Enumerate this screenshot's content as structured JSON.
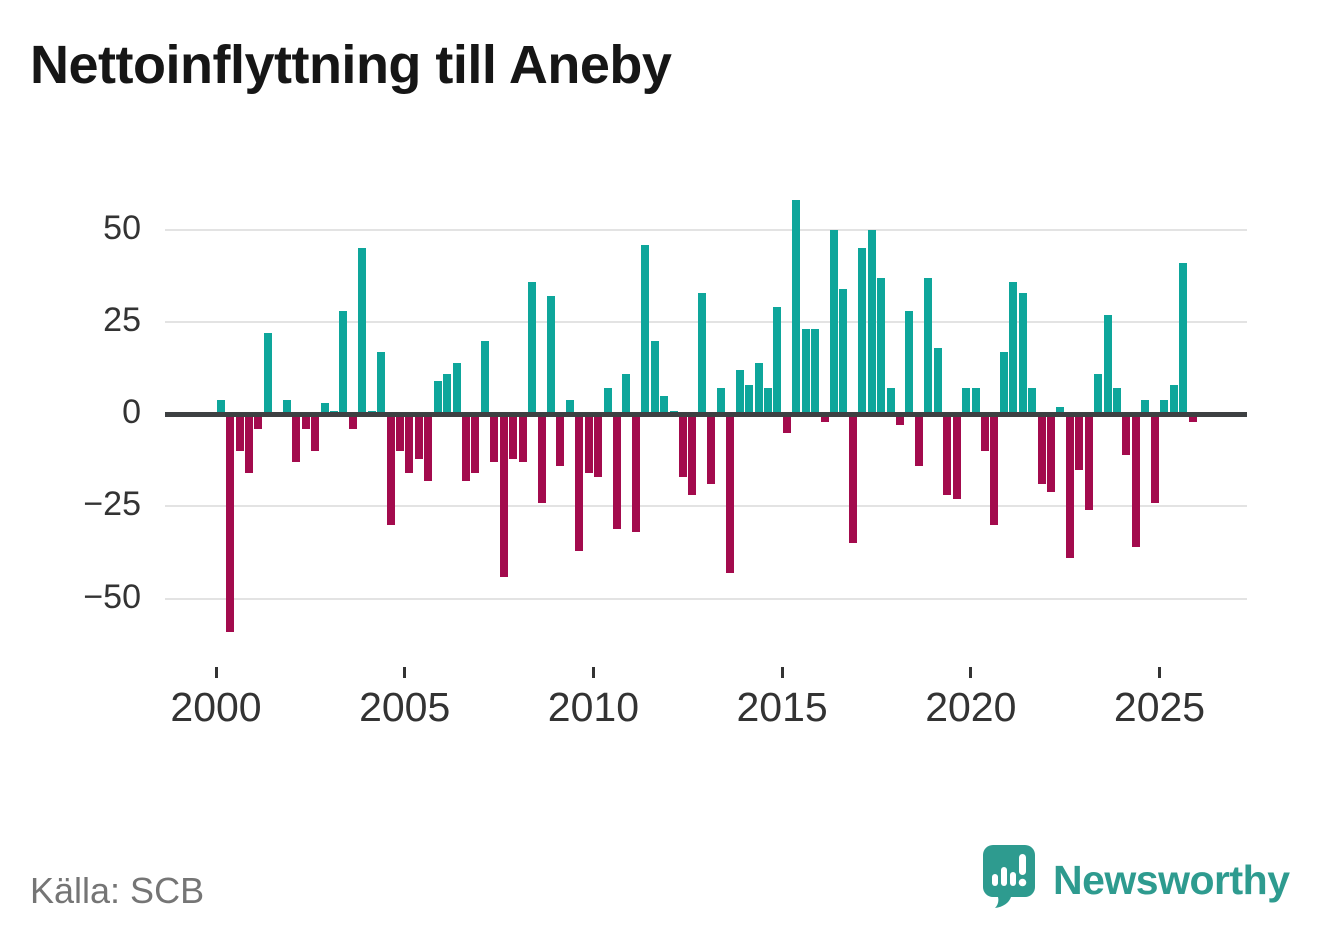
{
  "title": "Nettoinflyttning till Aneby",
  "source": "Källa: SCB",
  "logo": {
    "text": "Newsworthy",
    "icon": "newsworthy-speech-bubble-chart-icon"
  },
  "colors": {
    "positive_bar": "#0ea69b",
    "negative_bar": "#a30b4d",
    "grid": "#e3e3e3",
    "zero_line": "#3d4042",
    "axis_text": "#333333",
    "title_text": "#161616",
    "source_text": "#757575",
    "logo": "#2e9b8f",
    "background": "#ffffff"
  },
  "chart_data": {
    "type": "bar",
    "title": "Nettoinflyttning till Aneby",
    "frequency": "quarterly",
    "x_start": "2000-Q1",
    "x_end": "2025-Q4",
    "start_year": 2000,
    "quarters_per_year": 4,
    "xlabel": "",
    "ylabel": "",
    "ylim": [
      -62,
      60
    ],
    "grid": true,
    "y_ticks": [
      50,
      25,
      0,
      -25,
      -50
    ],
    "x_tick_years": [
      2000,
      2005,
      2010,
      2015,
      2020,
      2025
    ],
    "values": [
      4,
      -59,
      -10,
      -16,
      -4,
      22,
      0,
      4,
      -13,
      -4,
      -10,
      3,
      1,
      28,
      -4,
      45,
      1,
      17,
      -30,
      -10,
      -16,
      -12,
      -18,
      9,
      11,
      14,
      -18,
      -16,
      20,
      -13,
      -44,
      -12,
      -13,
      36,
      -24,
      32,
      -14,
      4,
      -37,
      -16,
      -17,
      7,
      -31,
      11,
      -32,
      46,
      20,
      5,
      1,
      -17,
      -22,
      33,
      -19,
      7,
      -43,
      12,
      8,
      14,
      7,
      29,
      -5,
      58,
      23,
      23,
      -2,
      50,
      34,
      -35,
      45,
      50,
      37,
      7,
      -3,
      28,
      -14,
      37,
      18,
      -22,
      -23,
      7,
      7,
      -10,
      -30,
      17,
      36,
      33,
      7,
      -19,
      -21,
      2,
      -39,
      -15,
      -26,
      11,
      27,
      7,
      -11,
      -36,
      4,
      -24,
      4,
      8,
      41,
      -2
    ]
  }
}
